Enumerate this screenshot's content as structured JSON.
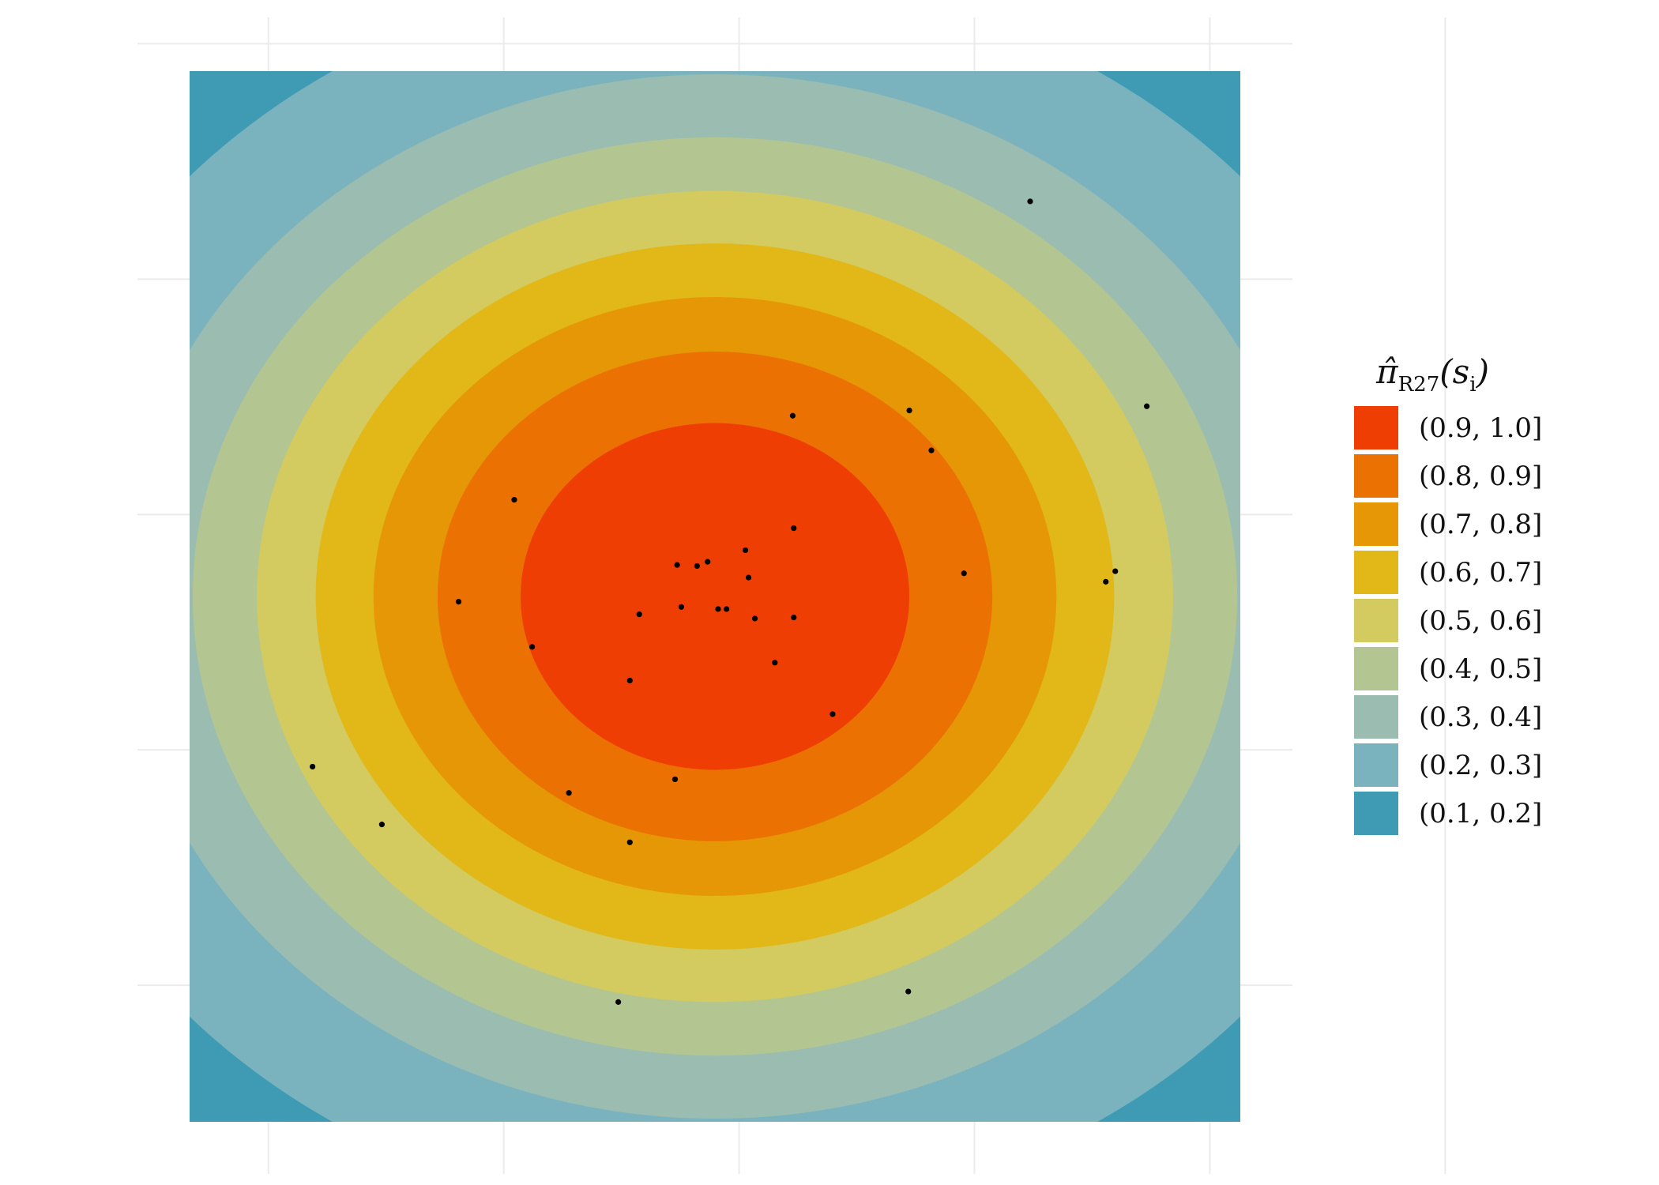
{
  "chart_data": {
    "type": "filled-contour",
    "title": "",
    "xlabel": "",
    "ylabel": "",
    "grid": true,
    "xlim": [
      0,
      1
    ],
    "ylim": [
      0,
      1
    ],
    "center": [
      0.5,
      0.5
    ],
    "legend": {
      "placement": "right",
      "title_symbol": "π̂",
      "title_subscript": "R27",
      "title_argument": "(s",
      "title_argument_subscript": "i",
      "title_close": ")",
      "items": [
        {
          "label": "(0.9, 1.0]",
          "color": "#ee3e03"
        },
        {
          "label": "(0.8, 0.9]",
          "color": "#eb7103"
        },
        {
          "label": "(0.7, 0.8]",
          "color": "#e69705"
        },
        {
          "label": "(0.6, 0.7]",
          "color": "#e1b818"
        },
        {
          "label": "(0.5, 0.6]",
          "color": "#d3ca60"
        },
        {
          "label": "(0.4, 0.5]",
          "color": "#b3c692"
        },
        {
          "label": "(0.3, 0.4]",
          "color": "#9bbcb0"
        },
        {
          "label": "(0.2, 0.3]",
          "color": "#7ab3be"
        },
        {
          "label": "(0.1, 0.2]",
          "color": "#3e9bb3"
        }
      ]
    },
    "contour_boundaries": [
      {
        "level": 0.9,
        "rx": 0.185,
        "ry": 0.165
      },
      {
        "level": 0.8,
        "rx": 0.264,
        "ry": 0.233
      },
      {
        "level": 0.7,
        "rx": 0.325,
        "ry": 0.285
      },
      {
        "level": 0.6,
        "rx": 0.38,
        "ry": 0.336
      },
      {
        "level": 0.5,
        "rx": 0.436,
        "ry": 0.386
      },
      {
        "level": 0.4,
        "rx": 0.497,
        "ry": 0.437
      },
      {
        "level": 0.3,
        "rx": 0.567,
        "ry": 0.497
      },
      {
        "level": 0.2,
        "rx": 0.677,
        "ry": 0.593
      }
    ],
    "points": [
      [
        0.8,
        0.876
      ],
      [
        0.911,
        0.681
      ],
      [
        0.574,
        0.672
      ],
      [
        0.685,
        0.677
      ],
      [
        0.706,
        0.639
      ],
      [
        0.309,
        0.592
      ],
      [
        0.575,
        0.565
      ],
      [
        0.529,
        0.544
      ],
      [
        0.493,
        0.533
      ],
      [
        0.464,
        0.53
      ],
      [
        0.483,
        0.529
      ],
      [
        0.532,
        0.518
      ],
      [
        0.737,
        0.522
      ],
      [
        0.881,
        0.524
      ],
      [
        0.872,
        0.514
      ],
      [
        0.256,
        0.495
      ],
      [
        0.428,
        0.483
      ],
      [
        0.468,
        0.49
      ],
      [
        0.503,
        0.488
      ],
      [
        0.511,
        0.488
      ],
      [
        0.538,
        0.479
      ],
      [
        0.575,
        0.48
      ],
      [
        0.326,
        0.452
      ],
      [
        0.419,
        0.42
      ],
      [
        0.557,
        0.437
      ],
      [
        0.612,
        0.388
      ],
      [
        0.117,
        0.338
      ],
      [
        0.462,
        0.326
      ],
      [
        0.361,
        0.313
      ],
      [
        0.183,
        0.283
      ],
      [
        0.419,
        0.266
      ],
      [
        0.684,
        0.124
      ],
      [
        0.408,
        0.114
      ]
    ]
  }
}
